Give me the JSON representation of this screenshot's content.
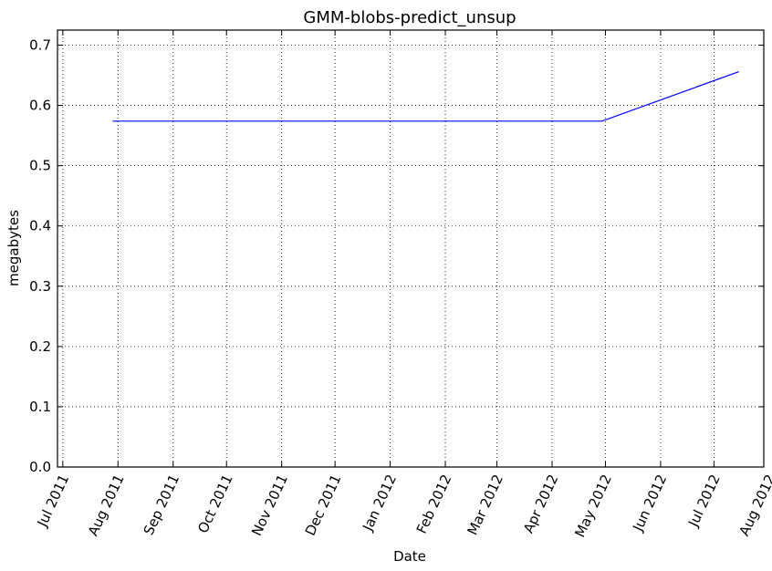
{
  "chart_data": {
    "type": "line",
    "title": "GMM-blobs-predict_unsup",
    "xlabel": "Date",
    "ylabel": "megabytes",
    "ylim": [
      0,
      0.725
    ],
    "yticks": [
      0.0,
      0.1,
      0.2,
      0.3,
      0.4,
      0.5,
      0.6,
      0.7
    ],
    "ytick_labels": [
      "0.0",
      "0.1",
      "0.2",
      "0.3",
      "0.4",
      "0.5",
      "0.6",
      "0.7"
    ],
    "xlim_days": [
      -3,
      394
    ],
    "xticks_days": [
      0,
      31,
      62,
      92,
      123,
      153,
      184,
      215,
      244,
      275,
      305,
      336,
      366,
      397
    ],
    "xtick_labels": [
      "Jul 2011",
      "Aug 2011",
      "Sep 2011",
      "Oct 2011",
      "Nov 2011",
      "Dec 2011",
      "Jan 2012",
      "Feb 2012",
      "Mar 2012",
      "Apr 2012",
      "May 2012",
      "Jun 2012",
      "Jul 2012",
      "Aug 2012"
    ],
    "grid": true,
    "series": [
      {
        "name": "megabytes",
        "color": "#0000ff",
        "x_days": [
          28,
          303,
          380
        ],
        "x_dates": [
          "2011-07-29",
          "2012-04-29",
          "2012-07-15"
        ],
        "values": [
          0.574,
          0.574,
          0.656
        ]
      }
    ]
  }
}
